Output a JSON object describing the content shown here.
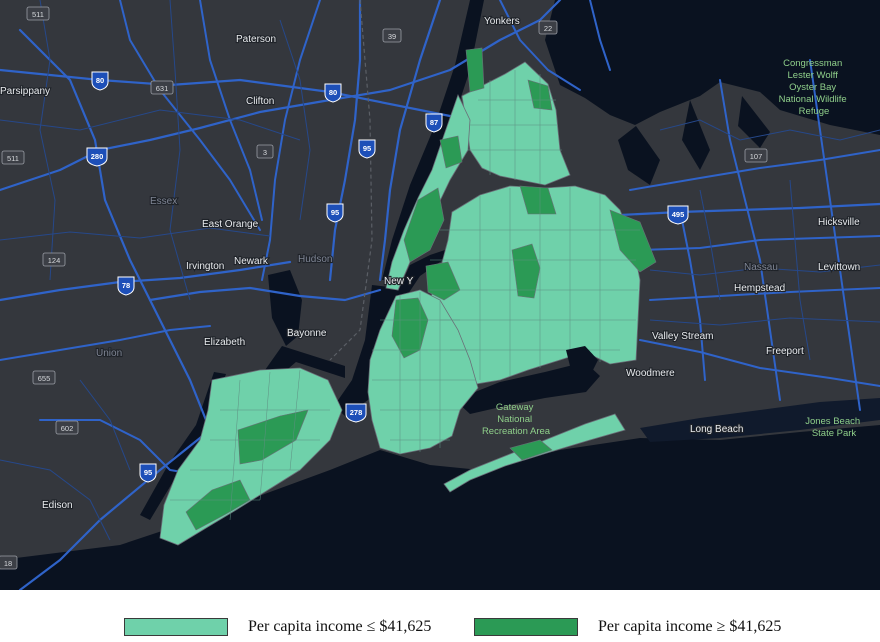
{
  "legend": {
    "low": {
      "label": "Per capita income ≤ $41,625",
      "color": "#6fd1aa"
    },
    "high": {
      "label": "Per capita income ≥ $41,625",
      "color": "#2b9a55"
    }
  },
  "map": {
    "colors": {
      "land": "#34373d",
      "water": "#0a1220",
      "roads": "#2f63c9",
      "border": "#5b5f66"
    },
    "places": {
      "yonkers": "Yonkers",
      "paterson": "Paterson",
      "parsippany": "Parsippany",
      "clifton": "Clifton",
      "east_orange": "East Orange",
      "newark": "Newark",
      "irvington": "Irvington",
      "elizabeth": "Elizabeth",
      "bayonne": "Bayonne",
      "edison": "Edison",
      "hicksville": "Hicksville",
      "levittown": "Levittown",
      "hempstead": "Hempstead",
      "valley_stream": "Valley Stream",
      "freeport": "Freeport",
      "woodmere": "Woodmere",
      "long_beach": "Long Beach",
      "new_york": "New Y",
      "essex": "Essex",
      "hudson": "Hudson",
      "union": "Union",
      "nassau": "Nassau"
    },
    "parks": {
      "congressman": [
        "Congressman",
        "Lester Wolff",
        "Oyster Bay",
        "National Wildlife",
        "Refuge"
      ],
      "gateway": [
        "Gateway",
        "National",
        "Recreation Area"
      ],
      "jones_beach": [
        "Jones Beach",
        "State Park"
      ]
    },
    "interstate_shields": [
      "80",
      "280",
      "80",
      "95",
      "95",
      "78",
      "278",
      "95",
      "495",
      "87"
    ],
    "route_shields": [
      "511",
      "631",
      "39",
      "22",
      "3",
      "511",
      "124",
      "655",
      "602",
      "107",
      "18"
    ]
  }
}
